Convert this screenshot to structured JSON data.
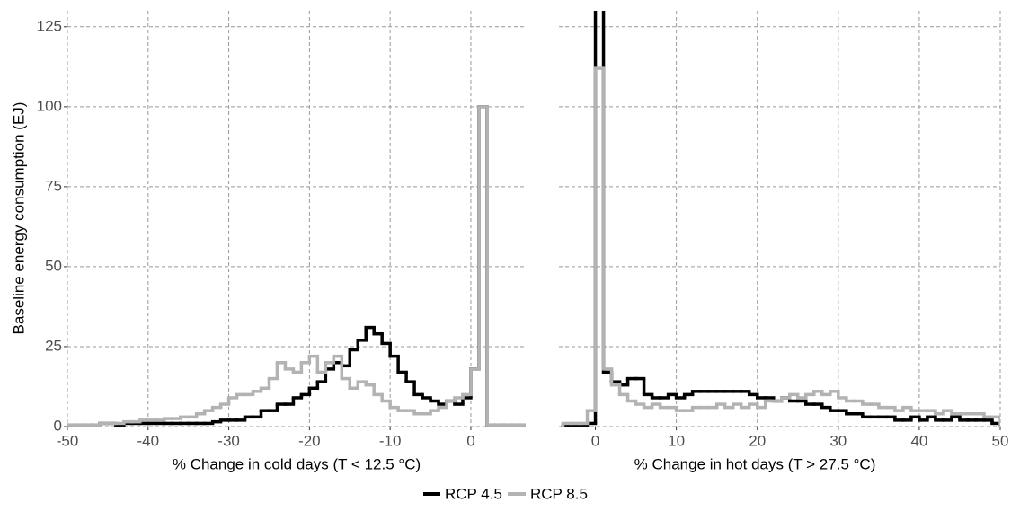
{
  "chart_data": [
    {
      "type": "histogram",
      "x_label": "% Change in cold days (T < 12.5 °C)",
      "y_label": "Baseline energy consumption (EJ)",
      "bins": [
        -50,
        -49,
        -48,
        -47,
        -46,
        -45,
        -44,
        -43,
        -42,
        -41,
        -40,
        -39,
        -38,
        -37,
        -36,
        -35,
        -34,
        -33,
        -32,
        -31,
        -30,
        -29,
        -28,
        -27,
        -26,
        -25,
        -24,
        -23,
        -22,
        -21,
        -20,
        -19,
        -18,
        -17,
        -16,
        -15,
        -14,
        -13,
        -12,
        -11,
        -10,
        -9,
        -8,
        -7,
        -6,
        -5,
        -4,
        -3,
        -2,
        -1,
        0,
        1,
        2,
        3,
        4,
        5,
        6,
        7
      ],
      "series": [
        {
          "name": "RCP 4.5",
          "color": "#000000",
          "values": [
            0.5,
            0.5,
            0.5,
            0.5,
            1,
            1,
            0.5,
            1,
            1,
            1,
            1,
            1,
            1,
            1,
            1,
            1,
            1,
            1,
            1.5,
            2,
            2,
            2,
            3,
            3,
            5,
            5,
            7,
            7,
            9,
            10,
            12,
            14,
            18,
            20,
            19,
            24,
            27,
            31,
            29,
            26,
            22,
            17,
            14,
            10,
            9,
            8,
            7,
            8,
            7,
            9,
            18,
            100,
            0.5,
            0.5,
            0.5,
            0.5,
            0.5
          ]
        },
        {
          "name": "RCP 8.5",
          "color": "#b3b3b3",
          "values": [
            0.5,
            0.5,
            0.5,
            0.5,
            1,
            1,
            1,
            1.5,
            1.5,
            2,
            2,
            2,
            2.5,
            2.5,
            3,
            3,
            4,
            5,
            6,
            7,
            9,
            10,
            10,
            11,
            12,
            15,
            20,
            18,
            17,
            20,
            22,
            17,
            20,
            22,
            15,
            12,
            14,
            13,
            10,
            8,
            6,
            5,
            5,
            4,
            4,
            5,
            6,
            8,
            9,
            10,
            18,
            100,
            0.5,
            0.5,
            0.5,
            0.5,
            0.5
          ]
        }
      ],
      "xlim": [
        -50,
        6.8
      ],
      "xticks": [
        -50,
        -40,
        -30,
        -20,
        -10,
        0
      ],
      "ylim": [
        0,
        130
      ],
      "yticks": [
        0,
        25,
        50,
        75,
        100,
        125
      ],
      "grid": true
    },
    {
      "type": "histogram",
      "x_label": "% Change in hot days (T > 27.5 °C)",
      "bins": [
        -4,
        -3,
        -2,
        -1,
        0,
        1,
        2,
        3,
        4,
        5,
        6,
        7,
        8,
        9,
        10,
        11,
        12,
        13,
        14,
        15,
        16,
        17,
        18,
        19,
        20,
        21,
        22,
        23,
        24,
        25,
        26,
        27,
        28,
        29,
        30,
        31,
        32,
        33,
        34,
        35,
        36,
        37,
        38,
        39,
        40,
        41,
        42,
        43,
        44,
        45,
        46,
        47,
        48,
        49,
        50
      ],
      "series": [
        {
          "name": "RCP 4.5",
          "color": "#000000",
          "values": [
            0.5,
            0.5,
            0.5,
            1,
            140,
            17,
            14,
            13,
            15,
            15,
            10,
            9,
            9,
            10,
            9,
            10,
            11,
            11,
            11,
            11,
            11,
            11,
            11,
            10,
            9,
            9,
            8,
            9,
            8,
            8,
            7,
            7,
            6,
            5,
            5,
            4,
            4,
            3,
            3,
            3,
            3,
            2,
            2,
            3,
            2,
            3,
            2,
            2,
            3,
            2,
            2,
            2,
            2,
            1
          ]
        },
        {
          "name": "RCP 8.5",
          "color": "#b3b3b3",
          "values": [
            1,
            1,
            1,
            5,
            112,
            18,
            13,
            10,
            8,
            7,
            6,
            7,
            6,
            6,
            5,
            5,
            6,
            6,
            6,
            7,
            6,
            7,
            6,
            7,
            6,
            8,
            8,
            9,
            10,
            9,
            10,
            11,
            10,
            11,
            9,
            8,
            8,
            7,
            7,
            6,
            6,
            5,
            6,
            5,
            5,
            5,
            4,
            5,
            4,
            4,
            4,
            4,
            3,
            3
          ]
        }
      ],
      "xlim": [
        -4.5,
        50
      ],
      "xticks": [
        0,
        10,
        20,
        30,
        40,
        50
      ],
      "ylim": [
        0,
        130
      ],
      "yticks": [
        0,
        25,
        50,
        75,
        100,
        125
      ],
      "grid": true
    }
  ]
}
